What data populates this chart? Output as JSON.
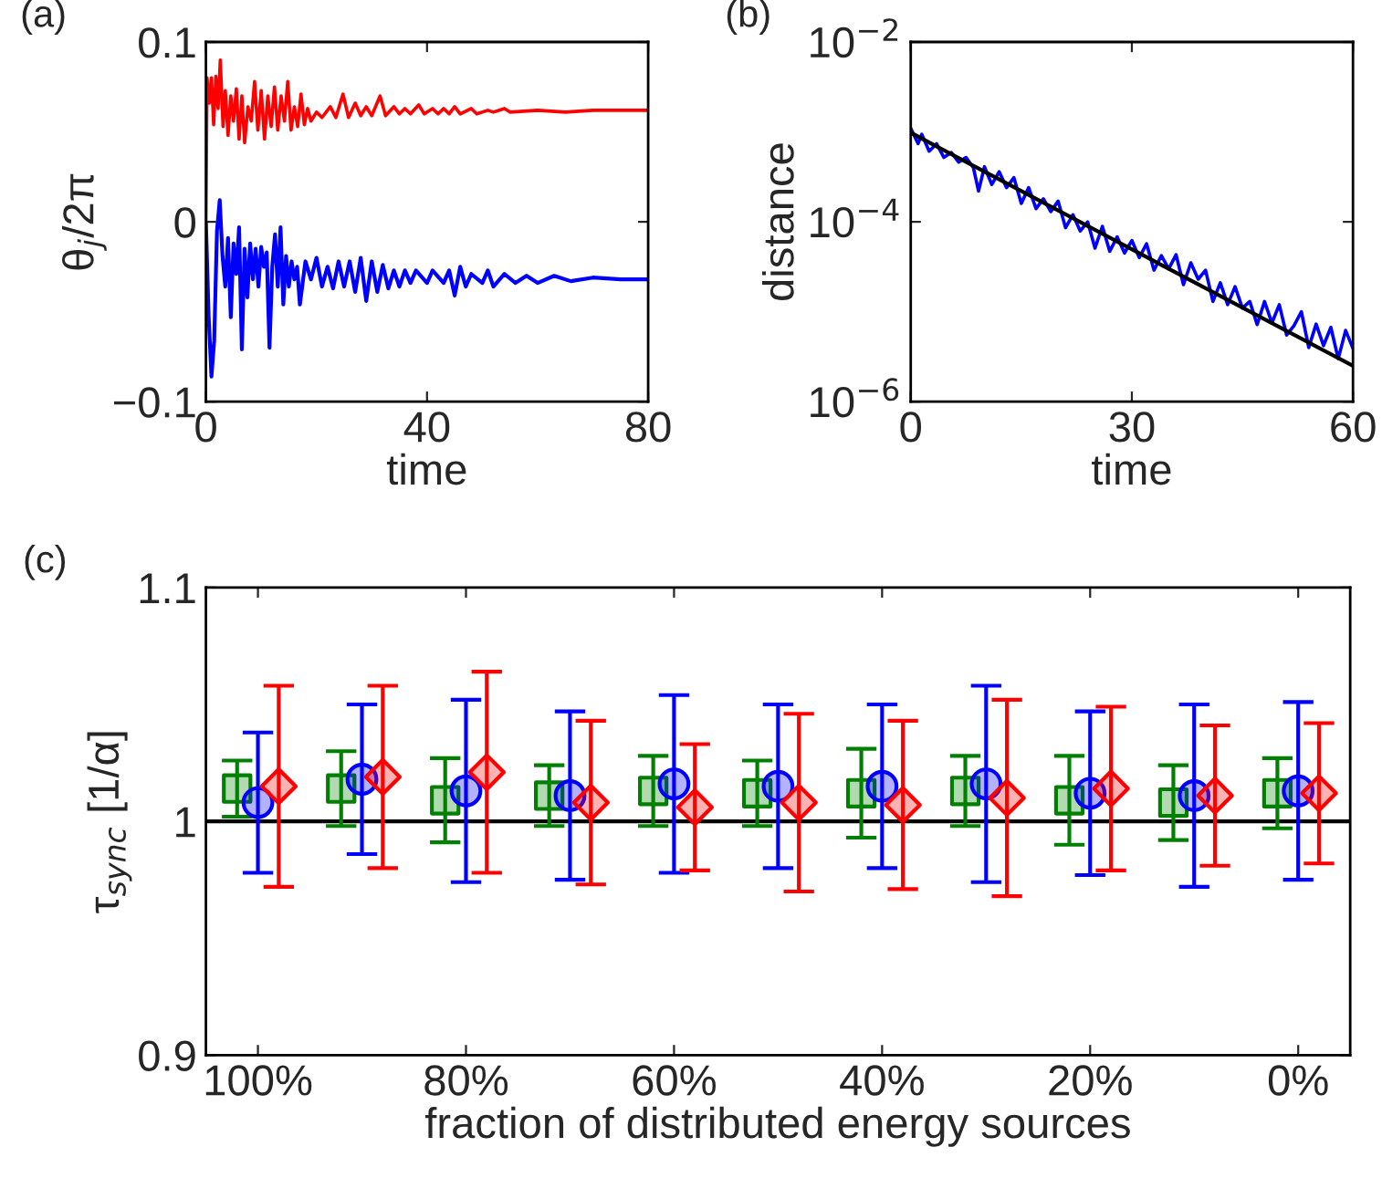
{
  "chart_data": [
    {
      "type": "line",
      "title": "(a)",
      "xlabel": "time",
      "ylabel": "θ$_{j}$/2π",
      "xlim": [
        0,
        80
      ],
      "xticks": [
        0,
        40,
        80
      ],
      "ylim": [
        -0.1,
        0.1
      ],
      "yticks": [
        {
          "value": -0.1,
          "label": "−0.1"
        },
        0,
        0.1
      ],
      "grid": false,
      "legend": false,
      "marker": "none",
      "line_style": "solid",
      "series": [
        {
          "color": "#ff0000",
          "x": [
            0,
            0.2,
            0.6,
            1,
            1.4,
            1.8,
            2.2,
            2.6,
            3.1,
            3.5,
            4,
            4.5,
            5,
            5.5,
            6,
            6.5,
            7,
            7.6,
            8.2,
            8.8,
            9.4,
            10,
            10.6,
            11.2,
            11.8,
            12.4,
            13,
            13.6,
            14.2,
            14.8,
            15.4,
            16,
            16.6,
            17.2,
            17.8,
            18.4,
            19,
            20,
            21,
            22.5,
            23.5,
            24.8,
            25.8,
            27,
            28,
            29,
            30,
            31.5,
            32.5,
            34,
            35,
            36,
            37,
            38.5,
            39.5,
            41,
            42,
            43,
            44,
            45,
            46,
            48,
            49,
            51,
            52,
            54,
            55,
            60,
            65,
            70,
            75,
            80
          ],
          "values": [
            0,
            0.08,
            0.066,
            0.08,
            0.054,
            0.081,
            0.063,
            0.09,
            0.053,
            0.073,
            0.048,
            0.07,
            0.056,
            0.074,
            0.046,
            0.07,
            0.044,
            0.064,
            0.056,
            0.078,
            0.051,
            0.073,
            0.046,
            0.07,
            0.053,
            0.075,
            0.051,
            0.07,
            0.056,
            0.078,
            0.051,
            0.064,
            0.053,
            0.071,
            0.054,
            0.063,
            0.056,
            0.061,
            0.058,
            0.064,
            0.058,
            0.071,
            0.058,
            0.066,
            0.059,
            0.064,
            0.059,
            0.07,
            0.059,
            0.064,
            0.06,
            0.063,
            0.06,
            0.065,
            0.06,
            0.063,
            0.06,
            0.063,
            0.06,
            0.064,
            0.06,
            0.063,
            0.06,
            0.062,
            0.061,
            0.063,
            0.061,
            0.062,
            0.061,
            0.062,
            0.062,
            0.062
          ]
        },
        {
          "color": "#0000ff",
          "x": [
            0,
            0.5,
            1,
            1.5,
            2,
            2.5,
            3,
            3.5,
            4,
            4.5,
            5,
            5.5,
            6,
            6.5,
            7,
            7.5,
            8,
            8.5,
            9,
            9.5,
            10,
            10.5,
            11,
            11.5,
            12,
            12.5,
            13,
            13.5,
            14,
            14.5,
            15,
            15.5,
            16,
            16.5,
            17,
            18,
            19,
            20,
            21,
            22,
            23,
            24,
            25,
            26,
            27,
            28,
            29,
            30,
            31,
            32,
            33,
            34,
            35,
            36,
            37,
            38,
            40,
            41,
            43,
            44,
            45,
            46,
            47,
            48,
            50,
            51,
            52,
            54,
            56,
            58,
            60,
            63,
            66,
            70,
            75,
            80
          ],
          "values": [
            0,
            -0.053,
            -0.086,
            -0.066,
            -0.005,
            0.012,
            -0.019,
            -0.036,
            -0.009,
            -0.053,
            -0.012,
            -0.029,
            -0.003,
            -0.071,
            -0.015,
            -0.042,
            -0.012,
            -0.032,
            -0.015,
            -0.036,
            -0.014,
            -0.025,
            -0.017,
            -0.07,
            -0.025,
            -0.007,
            -0.036,
            -0.003,
            -0.046,
            -0.019,
            -0.036,
            -0.022,
            -0.032,
            -0.025,
            -0.046,
            -0.022,
            -0.032,
            -0.02,
            -0.036,
            -0.025,
            -0.037,
            -0.022,
            -0.036,
            -0.022,
            -0.039,
            -0.02,
            -0.044,
            -0.022,
            -0.039,
            -0.024,
            -0.037,
            -0.027,
            -0.036,
            -0.027,
            -0.034,
            -0.027,
            -0.034,
            -0.027,
            -0.034,
            -0.027,
            -0.041,
            -0.025,
            -0.036,
            -0.029,
            -0.034,
            -0.027,
            -0.036,
            -0.029,
            -0.034,
            -0.03,
            -0.034,
            -0.03,
            -0.033,
            -0.031,
            -0.032,
            -0.032
          ]
        }
      ]
    },
    {
      "type": "line",
      "title": "(b)",
      "xlabel": "time",
      "ylabel": "distance",
      "log": "y",
      "xlim": [
        0,
        60
      ],
      "xticks": [
        0,
        30,
        60
      ],
      "ylim": [
        1e-06,
        0.01
      ],
      "yticks": [
        {
          "value": 1e-06,
          "label": "10$^{−6}$"
        },
        {
          "value": 0.0001,
          "label": "10$^{−4}$"
        },
        {
          "value": 0.01,
          "label": "10$^{−2}$"
        }
      ],
      "grid": false,
      "legend": false,
      "marker": "none",
      "line_style": "solid",
      "series": [
        {
          "color": "#0000ff",
          "x": [
            0,
            1,
            1.5,
            2.5,
            3.5,
            4.5,
            5.5,
            6.5,
            7.5,
            8.5,
            9.2,
            10,
            11,
            12,
            13,
            14,
            15,
            16,
            17,
            18,
            19,
            20,
            21,
            22,
            23,
            24,
            25,
            26,
            27,
            28,
            29,
            30,
            31,
            32,
            33,
            34,
            35,
            36,
            37,
            38,
            39,
            40,
            41,
            42,
            43,
            44,
            45,
            46,
            47,
            48,
            49,
            50,
            51,
            52,
            53,
            54,
            55,
            56,
            57,
            58,
            59,
            60
          ],
          "values": [
            0.0011,
            0.00074,
            0.00094,
            0.00061,
            0.00074,
            0.00052,
            0.00059,
            0.00046,
            0.00052,
            0.0004,
            0.00022,
            0.00041,
            0.00026,
            0.00036,
            0.00024,
            0.00031,
            0.00016,
            0.00024,
            0.00014,
            0.00018,
            0.00013,
            0.00017,
            8.6e-05,
            0.00012,
            7.9e-05,
            0.0001,
            5.1e-05,
            8.9e-05,
            4.7e-05,
            6.8e-05,
            4.5e-05,
            6.2e-05,
            4e-05,
            5.7e-05,
            2.9e-05,
            4.2e-05,
            3e-05,
            4.3e-05,
            2e-05,
            3.5e-05,
            2.3e-05,
            2.9e-05,
            1.3e-05,
            2.1e-05,
            1.2e-05,
            1.9e-05,
            1.1e-05,
            1.3e-05,
            7.2e-06,
            1.3e-05,
            7.5e-06,
            1.2e-05,
            5.5e-06,
            7e-06,
            1e-05,
            4e-06,
            7.3e-06,
            4.2e-06,
            6.7e-06,
            3e-06,
            6.2e-06,
            3.9e-06
          ]
        },
        {
          "color": "#000000",
          "x": [
            0,
            60
          ],
          "values": [
            0.00098,
            2.5e-06
          ]
        }
      ]
    },
    {
      "type": "scatter",
      "title": "(c)",
      "xlabel": "fraction of distributed energy sources",
      "ylabel": "τ$_{sync}$ [1/α]",
      "categories": [
        "100%",
        null,
        "80%",
        null,
        "60%",
        null,
        "40%",
        null,
        "20%",
        null,
        "0%"
      ],
      "ylim": [
        0.9,
        1.1
      ],
      "yticks": [
        0.9,
        1,
        1.1
      ],
      "grid": false,
      "legend": false,
      "ref_lines": [
        {
          "axis": "y",
          "value": 1,
          "color": "#000000",
          "line_style": "solid"
        }
      ],
      "series": [
        {
          "color": "#008000",
          "marker": "square",
          "values": [
            1.014,
            1.014,
            1.009,
            1.011,
            1.013,
            1.012,
            1.012,
            1.013,
            1.009,
            1.008,
            1.012
          ],
          "errors": [
            0.012,
            0.016,
            0.018,
            0.013,
            0.015,
            0.014,
            0.019,
            0.015,
            0.019,
            0.016,
            0.015
          ]
        },
        {
          "color": "#0000ff",
          "marker": "circle",
          "values": [
            1.008,
            1.018,
            1.013,
            1.011,
            1.016,
            1.015,
            1.015,
            1.016,
            1.012,
            1.011,
            1.013
          ],
          "errors": [
            0.03,
            0.032,
            0.039,
            0.036,
            0.038,
            0.035,
            0.035,
            0.042,
            0.035,
            0.039,
            0.038
          ]
        },
        {
          "color": "#ff0000",
          "marker": "diamond",
          "values": [
            1.015,
            1.019,
            1.021,
            1.008,
            1.006,
            1.008,
            1.007,
            1.01,
            1.014,
            1.011,
            1.012
          ],
          "errors": [
            0.043,
            0.039,
            0.043,
            0.035,
            0.027,
            0.038,
            0.036,
            0.042,
            0.035,
            0.03,
            0.03
          ]
        }
      ]
    }
  ]
}
